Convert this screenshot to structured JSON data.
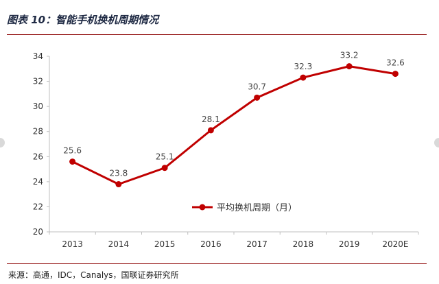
{
  "caption": "图表 10：智能手机换机周期情况",
  "source": "来源：高通，IDC，Canalys，国联证券研究所",
  "colors": {
    "line": "#c00000",
    "rule": "#8b0000",
    "axis": "#bfbfbf"
  },
  "chart_data": {
    "type": "line",
    "title": "",
    "xlabel": "",
    "ylabel": "",
    "categories": [
      "2013",
      "2014",
      "2015",
      "2016",
      "2017",
      "2018",
      "2019",
      "2020E"
    ],
    "series": [
      {
        "name": "平均换机周期（月）",
        "values": [
          25.6,
          23.8,
          25.1,
          28.1,
          30.7,
          32.3,
          33.2,
          32.6
        ]
      }
    ],
    "ylim": [
      20,
      34
    ],
    "yticks": [
      20,
      22,
      24,
      26,
      28,
      30,
      32,
      34
    ],
    "grid": false,
    "legend": "center-right",
    "data_labels": true
  }
}
